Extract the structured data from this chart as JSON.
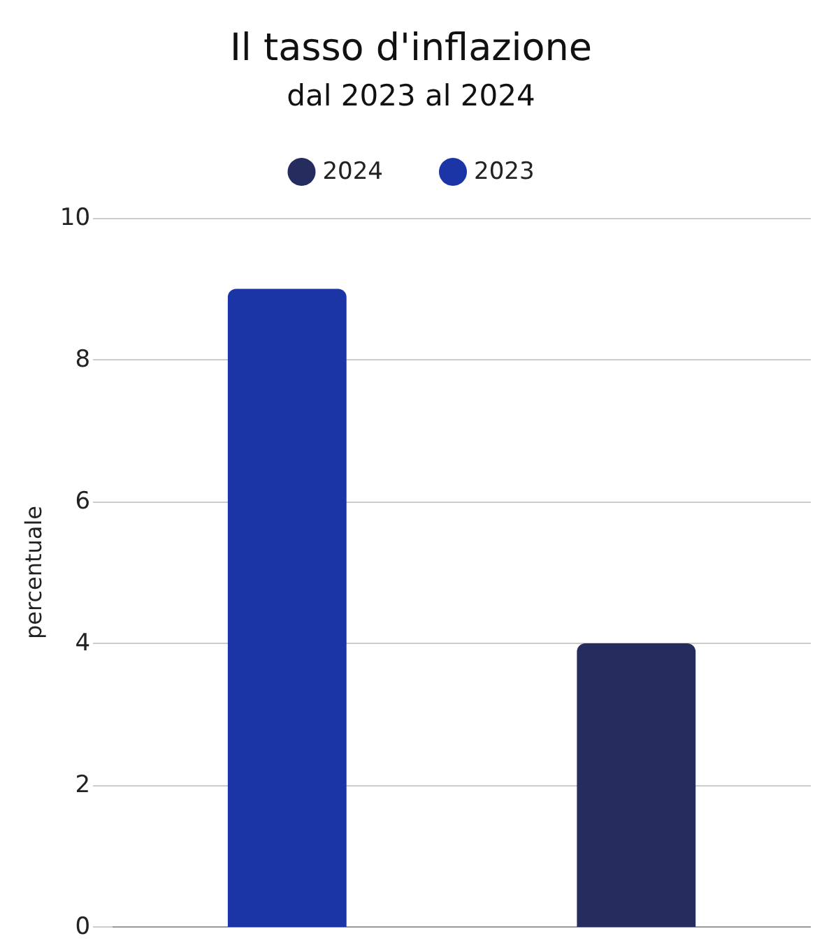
{
  "chart_data": {
    "type": "bar",
    "title": "Il tasso d'inflazione",
    "subtitle": "dal 2023 al 2024",
    "ylabel": "percentuale",
    "categories": [
      null,
      null
    ],
    "series": [
      {
        "name": "2024",
        "color": "#252d5e",
        "values": [
          null,
          4
        ]
      },
      {
        "name": "2023",
        "color": "#1b35a6",
        "values": [
          9,
          null
        ]
      }
    ],
    "ylim": [
      0,
      10
    ],
    "yticks": [
      0,
      2,
      4,
      6,
      8,
      10
    ],
    "grid": "y",
    "legend": "top"
  }
}
